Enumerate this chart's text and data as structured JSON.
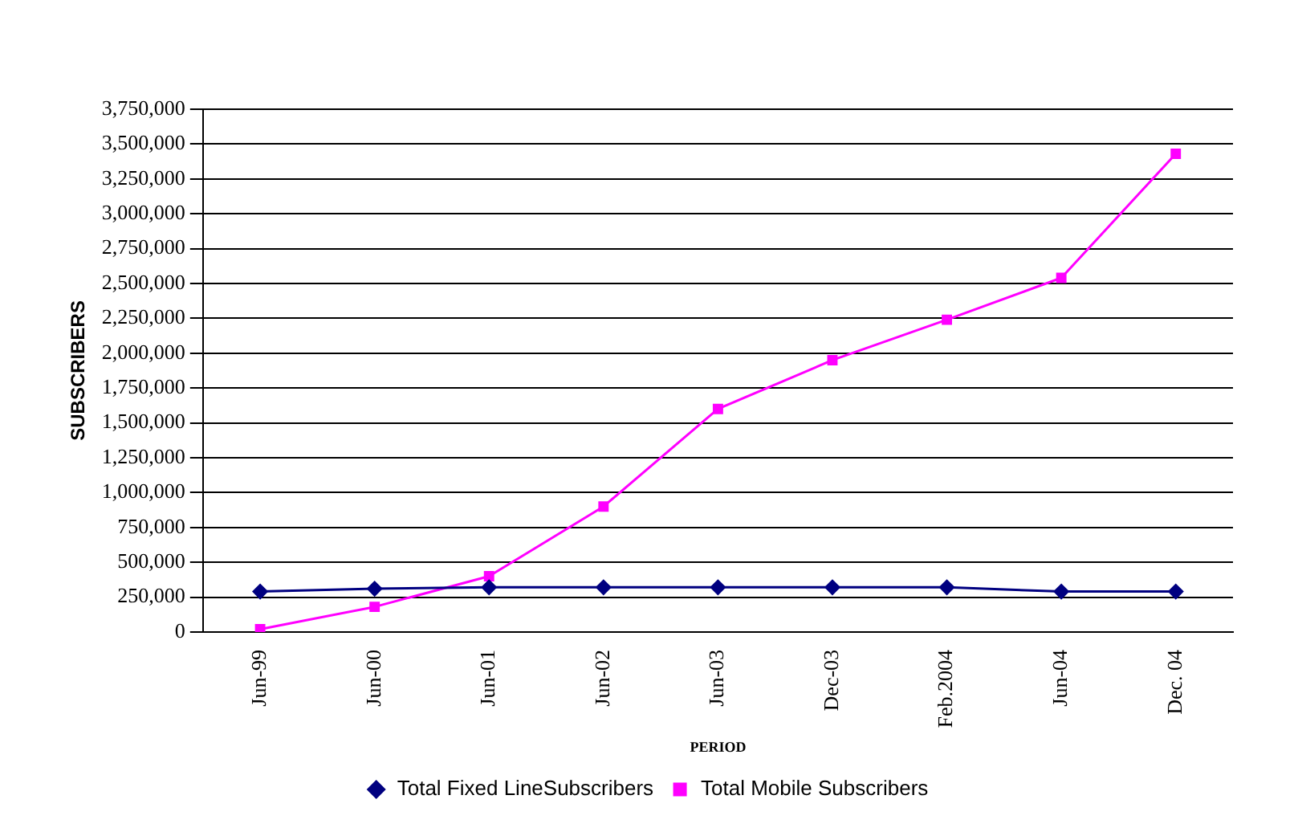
{
  "chart_data": {
    "type": "line",
    "xlabel": "PERIOD",
    "ylabel": "SUBSCRIBERS",
    "categories": [
      "Jun-99",
      "Jun-00",
      "Jun-01",
      "Jun-02",
      "Jun-03",
      "Dec-03",
      "Feb.2004",
      "Jun-04",
      "Dec. 04"
    ],
    "series": [
      {
        "name": "Total Fixed LineSubscribers",
        "color": "#000080",
        "marker": "diamond",
        "values": [
          290000,
          310000,
          320000,
          320000,
          320000,
          320000,
          320000,
          290000,
          290000
        ]
      },
      {
        "name": "Total Mobile Subscribers",
        "color": "#ff00ff",
        "marker": "square",
        "values": [
          20000,
          180000,
          400000,
          900000,
          1600000,
          1950000,
          2240000,
          2540000,
          3430000
        ]
      }
    ],
    "ylim": [
      0,
      3750000
    ],
    "yticks": [
      0,
      {
        "value": 250000,
        "label": "250,000"
      },
      {
        "value": 500000,
        "label": "500,000"
      },
      {
        "value": 750000,
        "label": "750,000"
      },
      {
        "value": 1000000,
        "label": "1,000,000"
      },
      {
        "value": 1250000,
        "label": "1,250,000"
      },
      {
        "value": 1500000,
        "label": "1,500,000"
      },
      {
        "value": 1750000,
        "label": "1,750,000"
      },
      {
        "value": 2000000,
        "label": "2,000,000"
      },
      {
        "value": 2250000,
        "label": "2,250,000"
      },
      {
        "value": 2500000,
        "label": "2,500,000"
      },
      {
        "value": 2750000,
        "label": "2,750,000"
      },
      {
        "value": 3000000,
        "label": "3,000,000"
      },
      {
        "value": 3250000,
        "label": "3,250,000"
      },
      {
        "value": 3500000,
        "label": "3,500,000"
      },
      {
        "value": 3750000,
        "label": "3,750,000"
      }
    ],
    "grid": "y",
    "legend": "bottom"
  }
}
